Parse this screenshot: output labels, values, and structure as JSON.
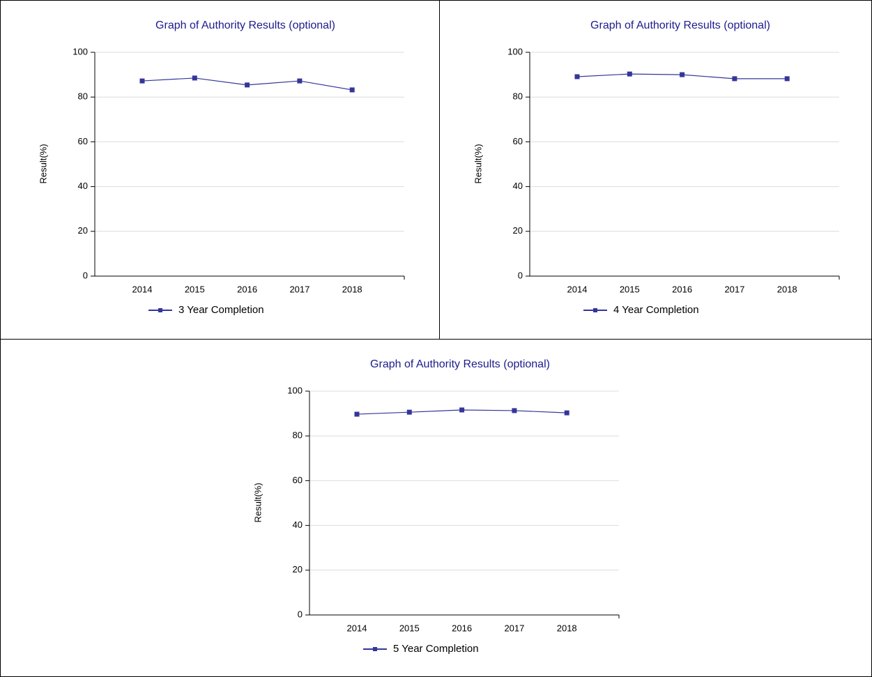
{
  "chart_data": [
    {
      "type": "line",
      "title": "Graph of Authority Results (optional)",
      "y_label": "Result(%)",
      "categories": [
        "2014",
        "2015",
        "2016",
        "2017",
        "2018"
      ],
      "series": [
        {
          "name": "3 Year Completion",
          "color": "#35359a",
          "values": [
            87.2,
            88.5,
            85.4,
            87.2,
            83.2
          ]
        }
      ],
      "ylim": [
        0,
        100
      ],
      "yticks": [
        0,
        20,
        40,
        60,
        80,
        100
      ],
      "grid": true
    },
    {
      "type": "line",
      "title": "Graph of Authority Results (optional)",
      "y_label": "Result(%)",
      "categories": [
        "2014",
        "2015",
        "2016",
        "2017",
        "2018"
      ],
      "series": [
        {
          "name": "4 Year Completion",
          "color": "#35359a",
          "values": [
            89.1,
            90.3,
            90.0,
            88.2,
            88.2
          ]
        }
      ],
      "ylim": [
        0,
        100
      ],
      "yticks": [
        0,
        20,
        40,
        60,
        80,
        100
      ],
      "grid": true
    },
    {
      "type": "line",
      "title": "Graph of Authority Results (optional)",
      "y_label": "Result(%)",
      "categories": [
        "2014",
        "2015",
        "2016",
        "2017",
        "2018"
      ],
      "series": [
        {
          "name": "5 Year Completion",
          "color": "#35359a",
          "values": [
            89.7,
            90.6,
            91.6,
            91.3,
            90.3
          ]
        }
      ],
      "ylim": [
        0,
        100
      ],
      "yticks": [
        0,
        20,
        40,
        60,
        80,
        100
      ],
      "grid": true
    }
  ]
}
